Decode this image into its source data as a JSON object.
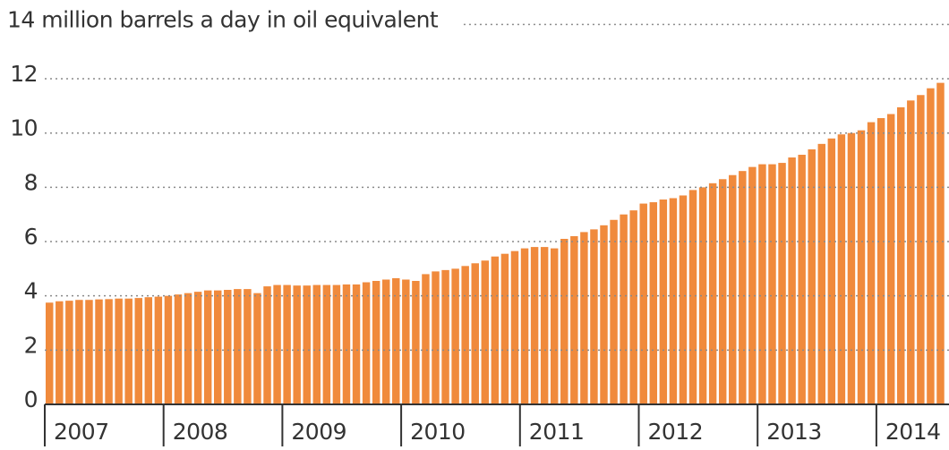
{
  "chart_data": {
    "type": "bar",
    "categories": [
      "2007",
      null,
      null,
      null,
      null,
      null,
      null,
      null,
      null,
      null,
      null,
      null,
      "2008",
      null,
      null,
      null,
      null,
      null,
      null,
      null,
      null,
      null,
      null,
      null,
      "2009",
      null,
      null,
      null,
      null,
      null,
      null,
      null,
      null,
      null,
      null,
      null,
      "2010",
      null,
      null,
      null,
      null,
      null,
      null,
      null,
      null,
      null,
      null,
      null,
      "2011",
      null,
      null,
      null,
      null,
      null,
      null,
      null,
      null,
      null,
      null,
      null,
      "2012",
      null,
      null,
      null,
      null,
      null,
      null,
      null,
      null,
      null,
      null,
      null,
      "2013",
      null,
      null,
      null,
      null,
      null,
      null,
      null,
      null,
      null,
      null,
      null,
      "2014",
      null,
      null,
      null,
      null,
      null,
      null
    ],
    "values": [
      3.75,
      3.8,
      3.82,
      3.85,
      3.85,
      3.87,
      3.88,
      3.9,
      3.9,
      3.92,
      3.95,
      3.97,
      4.0,
      4.05,
      4.1,
      4.15,
      4.2,
      4.2,
      4.22,
      4.25,
      4.25,
      4.1,
      4.35,
      4.4,
      4.4,
      4.38,
      4.38,
      4.4,
      4.4,
      4.4,
      4.42,
      4.42,
      4.5,
      4.55,
      4.6,
      4.65,
      4.6,
      4.55,
      4.8,
      4.9,
      4.95,
      5.0,
      5.1,
      5.2,
      5.3,
      5.45,
      5.55,
      5.65,
      5.75,
      5.8,
      5.8,
      5.75,
      6.1,
      6.2,
      6.35,
      6.45,
      6.6,
      6.8,
      7.0,
      7.15,
      7.4,
      7.45,
      7.55,
      7.6,
      7.7,
      7.9,
      8.0,
      8.15,
      8.3,
      8.45,
      8.6,
      8.75,
      8.85,
      8.85,
      8.9,
      9.1,
      9.2,
      9.4,
      9.6,
      9.8,
      9.95,
      10.0,
      10.1,
      10.4,
      10.55,
      10.7,
      10.95,
      11.2,
      11.4,
      11.65,
      11.85
    ],
    "color": "#f08a3c",
    "ylim": [
      0,
      14
    ],
    "yticks": [
      0,
      2,
      4,
      6,
      8,
      10,
      12,
      {
        "value": 14,
        "label": "14 million barrels a day in oil equivalent"
      }
    ],
    "grid": true
  }
}
